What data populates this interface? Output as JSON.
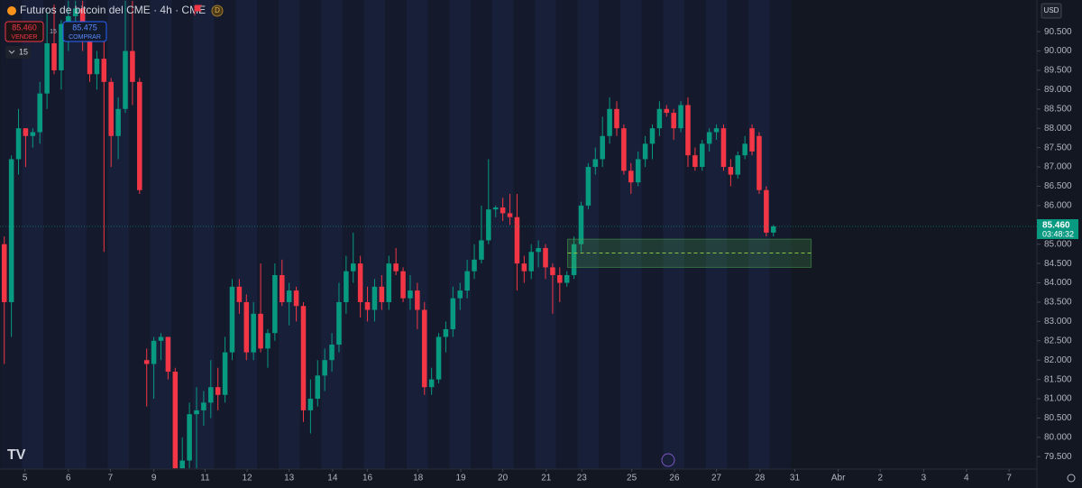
{
  "header": {
    "title": "Futuros de bitcoin del CME · 4h · CME",
    "symbol_badge": "D",
    "sell_price": "85.460",
    "sell_label": "VENDER",
    "spread": "15",
    "buy_price": "85.475",
    "buy_label": "COMPRAR",
    "quantity": "15",
    "currency": "USD"
  },
  "chart_data": {
    "type": "candlestick",
    "up_color": "#089981",
    "down_color": "#f23645",
    "open": [
      85000,
      83500,
      87200,
      88000,
      87800,
      87900,
      88900,
      90200,
      89500,
      90700,
      90900,
      91100,
      90300,
      89400,
      89800,
      89200,
      87800,
      88500,
      90000,
      89200,
      82000,
      81900,
      82500,
      82600,
      81700,
      79200,
      79400,
      80600,
      80700,
      80900,
      81300,
      81100,
      82200,
      83900,
      83500,
      82200,
      83200,
      82300,
      82700,
      84200,
      83500,
      83800,
      83400,
      80700,
      81000,
      81600,
      82000,
      82400,
      83500,
      84300,
      84500,
      83500,
      83300,
      83900,
      83500,
      84500,
      84300,
      83600,
      83800,
      83300,
      81300,
      81500,
      82600,
      82800,
      83600,
      83800,
      84300,
      84600,
      85100,
      85900,
      85950,
      85800,
      85700,
      84500,
      84300,
      84800,
      84900,
      84400,
      84200,
      84000,
      84200,
      85000,
      86000,
      87000,
      87200,
      87800,
      88500,
      88000,
      86900,
      86600,
      87200,
      87600,
      88000,
      88500,
      88400,
      88000,
      88600,
      87300,
      87000,
      87600,
      87900,
      88000,
      87000,
      86800,
      87300,
      88000,
      87800,
      86400,
      85300
    ],
    "high": [
      85200,
      87300,
      88500,
      88000,
      88000,
      89200,
      91000,
      91200,
      90800,
      91300,
      91300,
      91300,
      90500,
      90000,
      90500,
      89300,
      88800,
      91300,
      91300,
      89300,
      82300,
      82600,
      82700,
      82600,
      81800,
      80000,
      80900,
      81300,
      81200,
      82000,
      81800,
      82600,
      84100,
      84100,
      83700,
      83500,
      84500,
      82800,
      84500,
      84600,
      84000,
      83900,
      83500,
      81500,
      82000,
      82300,
      82700,
      84000,
      84700,
      85300,
      84700,
      83900,
      84100,
      84200,
      84700,
      84900,
      84400,
      84200,
      84000,
      83500,
      81800,
      82700,
      83000,
      83900,
      84000,
      84600,
      85000,
      86000,
      87200,
      86000,
      86200,
      86300,
      86300,
      84700,
      85000,
      85100,
      85000,
      84500,
      84400,
      84300,
      85200,
      86100,
      87100,
      87500,
      88300,
      88800,
      88700,
      88100,
      87100,
      87400,
      87800,
      88100,
      88700,
      88600,
      88500,
      88700,
      88800,
      87500,
      87700,
      88000,
      88100,
      88100,
      87200,
      87400,
      87800,
      88100,
      87900,
      86500,
      85500
    ],
    "low": [
      81900,
      82600,
      86800,
      87000,
      87500,
      87600,
      88500,
      89400,
      89000,
      90000,
      90300,
      90000,
      89200,
      89000,
      84800,
      87000,
      87200,
      88400,
      88600,
      86300,
      80800,
      81000,
      82000,
      81500,
      79200,
      79200,
      79200,
      79200,
      80300,
      80500,
      80700,
      80900,
      82000,
      83200,
      82000,
      82000,
      82200,
      81800,
      82500,
      83400,
      82900,
      83000,
      80400,
      80100,
      80800,
      81200,
      81700,
      82200,
      83200,
      84000,
      83100,
      83000,
      83000,
      83300,
      83300,
      84200,
      83500,
      83300,
      82800,
      81100,
      81100,
      81400,
      82200,
      82600,
      83300,
      83600,
      84100,
      84500,
      85000,
      85700,
      85600,
      85500,
      83800,
      84000,
      84100,
      84400,
      84100,
      83200,
      83500,
      83900,
      84100,
      84800,
      85900,
      86800,
      87000,
      87600,
      87800,
      86800,
      86300,
      86500,
      87000,
      87200,
      87800,
      88300,
      87700,
      87900,
      87000,
      86900,
      86900,
      87400,
      87700,
      86900,
      86500,
      86700,
      87200,
      87300,
      86300,
      85200,
      85200
    ],
    "close": [
      83500,
      87200,
      88000,
      87800,
      87900,
      88900,
      90200,
      89500,
      90700,
      90900,
      91100,
      90300,
      89400,
      89800,
      89200,
      87800,
      88500,
      90000,
      89200,
      86400,
      81900,
      82500,
      82600,
      81700,
      79200,
      79400,
      80600,
      80700,
      80900,
      81300,
      81100,
      82200,
      83900,
      83500,
      82200,
      83200,
      82300,
      82700,
      84200,
      83500,
      83800,
      83400,
      80700,
      81000,
      81600,
      82000,
      82400,
      83500,
      84300,
      84500,
      83500,
      83300,
      83900,
      83500,
      84500,
      84300,
      83600,
      83800,
      83300,
      81300,
      81500,
      82600,
      82800,
      83600,
      83800,
      84300,
      84600,
      85100,
      85900,
      85950,
      85800,
      85700,
      84500,
      84300,
      84800,
      84900,
      84400,
      84200,
      84000,
      84200,
      85000,
      86000,
      87000,
      87200,
      87800,
      88500,
      88000,
      86900,
      86600,
      87200,
      87600,
      88000,
      88500,
      88400,
      88000,
      88600,
      87300,
      87000,
      87600,
      87900,
      88000,
      87000,
      86800,
      87300,
      87600,
      87400,
      86400,
      85300,
      85460
    ],
    "ylim": [
      79180,
      91320
    ],
    "yticks": [
      {
        "value": 79500,
        "label": "79.500"
      },
      {
        "value": 80000,
        "label": "80.000"
      },
      {
        "value": 80500,
        "label": "80.500"
      },
      {
        "value": 81000,
        "label": "81.000"
      },
      {
        "value": 81500,
        "label": "81.500"
      },
      {
        "value": 82000,
        "label": "82.000"
      },
      {
        "value": 82500,
        "label": "82.500"
      },
      {
        "value": 83000,
        "label": "83.000"
      },
      {
        "value": 83500,
        "label": "83.500"
      },
      {
        "value": 84000,
        "label": "84.000"
      },
      {
        "value": 84500,
        "label": "84.500"
      },
      {
        "value": 85000,
        "label": "85.000"
      },
      {
        "value": 85500,
        "label": "85.500"
      },
      {
        "value": 86000,
        "label": "86.000"
      },
      {
        "value": 86500,
        "label": "86.500"
      },
      {
        "value": 87000,
        "label": "87.000"
      },
      {
        "value": 87500,
        "label": "87.500"
      },
      {
        "value": 88000,
        "label": "88.000"
      },
      {
        "value": 88500,
        "label": "88.500"
      },
      {
        "value": 89000,
        "label": "89.000"
      },
      {
        "value": 89500,
        "label": "89.500"
      },
      {
        "value": 90000,
        "label": "90.000"
      },
      {
        "value": 90500,
        "label": "90.500"
      }
    ],
    "xlim": [
      -0.6,
      145
    ],
    "xticks": [
      {
        "value": 2.9,
        "label": "5"
      },
      {
        "value": 9.0,
        "label": "6"
      },
      {
        "value": 14.9,
        "label": "7"
      },
      {
        "value": 21.0,
        "label": "9"
      },
      {
        "value": 28.2,
        "label": "11"
      },
      {
        "value": 34.1,
        "label": "12"
      },
      {
        "value": 40.0,
        "label": "13"
      },
      {
        "value": 46.1,
        "label": "14"
      },
      {
        "value": 51.0,
        "label": "16"
      },
      {
        "value": 58.1,
        "label": "18"
      },
      {
        "value": 64.1,
        "label": "19"
      },
      {
        "value": 70.0,
        "label": "20"
      },
      {
        "value": 76.1,
        "label": "21"
      },
      {
        "value": 81.1,
        "label": "23"
      },
      {
        "value": 88.1,
        "label": "25"
      },
      {
        "value": 94.1,
        "label": "26"
      },
      {
        "value": 100.0,
        "label": "27"
      },
      {
        "value": 106.1,
        "label": "28"
      },
      {
        "value": 111.0,
        "label": "31"
      },
      {
        "value": 117.1,
        "label": "Abr"
      },
      {
        "value": 123.0,
        "label": "2"
      },
      {
        "value": 129.1,
        "label": "3"
      },
      {
        "value": 135.1,
        "label": "4"
      },
      {
        "value": 141.1,
        "label": "7"
      }
    ],
    "last_price": {
      "value": 85460,
      "label": "85.460",
      "countdown": "03:48:32"
    },
    "zone": {
      "top": 85130,
      "bottom": 84400,
      "mid": 84770,
      "x": [
        79.1,
        113.3
      ]
    }
  }
}
